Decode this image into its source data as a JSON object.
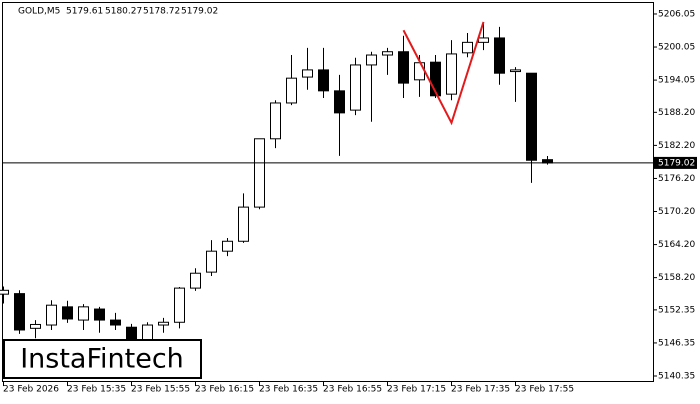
{
  "chart_data": {
    "type": "candlestick",
    "title": "GOLD,M5",
    "watermark": "InstaFintech",
    "categories": [
      "23 Feb 2026",
      null,
      null,
      null,
      "23 Feb 15:35",
      null,
      null,
      null,
      "23 Feb 15:55",
      null,
      null,
      null,
      "23 Feb 16:15",
      null,
      null,
      null,
      "23 Feb 16:35",
      null,
      null,
      null,
      "23 Feb 16:55",
      null,
      null,
      null,
      "23 Feb 17:15",
      null,
      null,
      null,
      "23 Feb 17:35",
      null,
      null,
      null,
      "23 Feb 17:55",
      null,
      null
    ],
    "open": [
      5155.2,
      5155.3,
      5149.0,
      5149.6,
      5152.9,
      5150.5,
      5152.5,
      5150.5,
      5149.2,
      5146.9,
      5149.6,
      5150.1,
      5156.3,
      5159.2,
      5163.0,
      5164.8,
      5171.0,
      5183.4,
      5189.9,
      5194.6,
      5195.9,
      5192.1,
      5188.6,
      5196.8,
      5198.6,
      5199.2,
      5194.1,
      5197.3,
      5191.5,
      5199.0,
      5200.9,
      5201.7,
      5195.6,
      5195.3,
      5179.61
    ],
    "high": [
      5156.6,
      5155.9,
      5150.5,
      5154.1,
      5154.0,
      5153.4,
      5152.9,
      5151.8,
      5149.8,
      5150.1,
      5150.9,
      5156.5,
      5159.9,
      5165.0,
      5165.4,
      5173.5,
      5183.4,
      5190.4,
      5198.6,
      5199.9,
      5199.9,
      5195.0,
      5198.1,
      5199.2,
      5199.9,
      5202.1,
      5198.6,
      5198.6,
      5201.3,
      5202.6,
      5204.4,
      5203.7,
      5196.4,
      5195.3,
      5180.27
    ],
    "low": [
      5153.5,
      5148.0,
      5147.2,
      5148.7,
      5150.0,
      5148.7,
      5148.2,
      5148.7,
      5145.4,
      5146.3,
      5148.2,
      5149.0,
      5155.8,
      5158.5,
      5162.1,
      5164.5,
      5170.6,
      5181.7,
      5189.5,
      5192.3,
      5190.8,
      5180.3,
      5187.7,
      5186.5,
      5195.0,
      5190.8,
      5191.0,
      5190.8,
      5190.4,
      5198.2,
      5199.5,
      5193.2,
      5190.1,
      5175.4,
      5178.72
    ],
    "close": [
      5155.9,
      5148.7,
      5149.7,
      5153.2,
      5150.7,
      5152.9,
      5150.5,
      5149.6,
      5145.9,
      5149.6,
      5150.1,
      5156.3,
      5159.0,
      5163.0,
      5164.8,
      5171.0,
      5183.4,
      5189.9,
      5194.4,
      5195.9,
      5192.1,
      5188.1,
      5196.8,
      5198.6,
      5199.2,
      5193.5,
      5197.2,
      5191.2,
      5198.8,
      5200.9,
      5201.7,
      5195.3,
      5195.9,
      5179.5,
      5179.02
    ],
    "up_color": "#ffffff",
    "down_color": "#000000",
    "pattern": {
      "x": [
        25,
        28,
        30
      ],
      "values": [
        5203.1,
        5186.3,
        5204.6
      ],
      "color": "#e31a1c"
    },
    "ylim": [
      5139.26,
      5207.86
    ],
    "yticks": [
      5140.35,
      5146.35,
      5152.35,
      {
        "value": 5158.2,
        "label": "5158.20"
      },
      {
        "value": 5164.2,
        "label": "5164.20"
      },
      {
        "value": 5170.2,
        "label": "5170.20"
      },
      {
        "value": 5176.2,
        "label": "5176.20"
      },
      {
        "value": 5182.2,
        "label": "5182.20"
      },
      {
        "value": 5188.2,
        "label": "5188.20"
      },
      5194.05,
      5200.05,
      5206.05
    ]
  }
}
